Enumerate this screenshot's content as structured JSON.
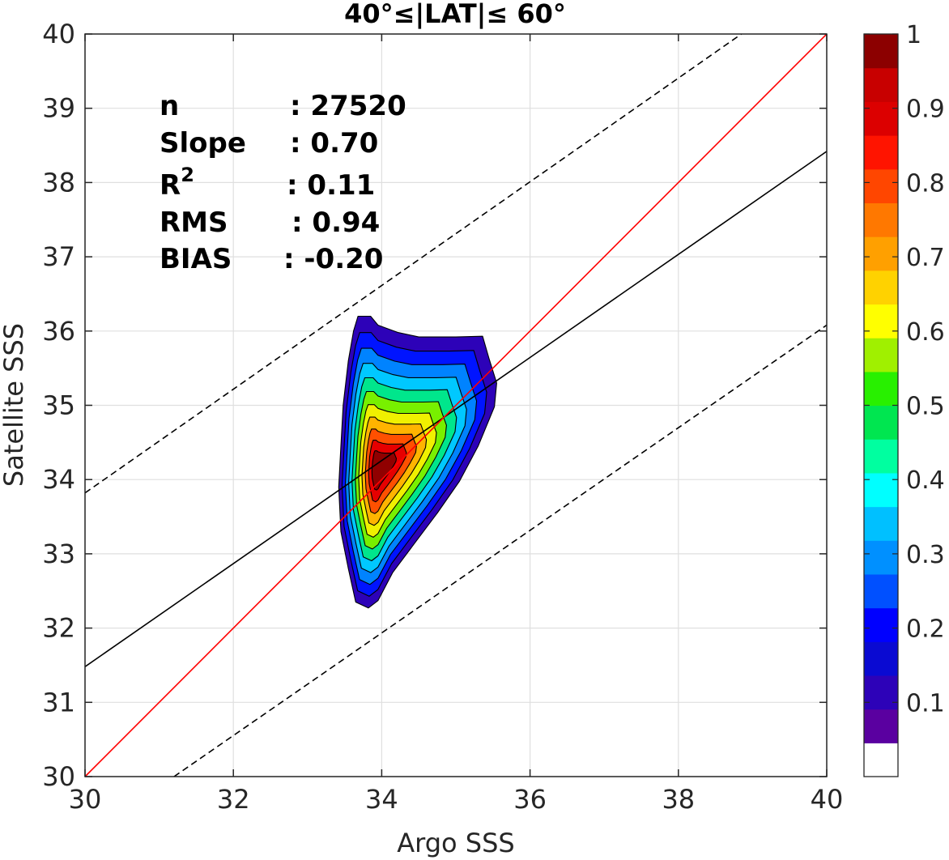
{
  "chart_data": {
    "type": "contour",
    "title": "40°≤|LAT|≤ 60°",
    "xlabel": "Argo SSS",
    "ylabel": "Satellite SSS",
    "xlim": [
      30,
      40
    ],
    "ylim": [
      30,
      40
    ],
    "xticks": [
      30,
      32,
      34,
      36,
      38,
      40
    ],
    "yticks": [
      30,
      31,
      32,
      33,
      34,
      35,
      36,
      37,
      38,
      39,
      40
    ],
    "grid": true,
    "stats": [
      {
        "key": "n",
        "value": ": 27520"
      },
      {
        "key": "Slope",
        "value": ": 0.70"
      },
      {
        "key": "R",
        "sup": "2",
        "value": ": 0.11"
      },
      {
        "key": "RMS",
        "value": ": 0.94"
      },
      {
        "key": "BIAS",
        "value": ": -0.20"
      }
    ],
    "lines": {
      "one_to_one": {
        "color": "#ff0000",
        "points": [
          [
            30,
            30
          ],
          [
            40,
            40
          ]
        ]
      },
      "regression": {
        "color": "#000000",
        "slope": 0.7,
        "points": [
          [
            30,
            31.48
          ],
          [
            40,
            38.42
          ]
        ]
      },
      "upper_bound": {
        "color": "#000000",
        "dash": true,
        "points": [
          [
            30,
            33.82
          ],
          [
            38.85,
            40
          ]
        ]
      },
      "lower_bound": {
        "color": "#000000",
        "dash": true,
        "points": [
          [
            31.2,
            30
          ],
          [
            40,
            36.08
          ]
        ]
      }
    },
    "density_contours": {
      "peak": [
        33.95,
        34.15
      ],
      "levels": [
        {
          "level": 0.05,
          "color": "#2d02b8"
        },
        {
          "level": 0.15,
          "color": "#0014ff"
        },
        {
          "level": 0.25,
          "color": "#0083ff"
        },
        {
          "level": 0.35,
          "color": "#00c8ff"
        },
        {
          "level": 0.45,
          "color": "#00e68c"
        },
        {
          "level": 0.55,
          "color": "#78f000"
        },
        {
          "level": 0.65,
          "color": "#f0f000"
        },
        {
          "level": 0.72,
          "color": "#ffb400"
        },
        {
          "level": 0.8,
          "color": "#ff5000"
        },
        {
          "level": 0.88,
          "color": "#e60000"
        },
        {
          "level": 0.95,
          "color": "#900000"
        }
      ]
    },
    "colorbar": {
      "range": [
        0,
        1
      ],
      "ticks": [
        "0.1",
        "0.2",
        "0.3",
        "0.4",
        "0.5",
        "0.6",
        "0.7",
        "0.8",
        "0.9",
        "1"
      ],
      "tick_values": [
        0.1,
        0.2,
        0.3,
        0.4,
        0.5,
        0.6,
        0.7,
        0.8,
        0.9,
        1.0
      ],
      "colors": [
        "#ffffff",
        "#5a00a0",
        "#2d02b8",
        "#0a0ad2",
        "#0000ff",
        "#0050ff",
        "#0090ff",
        "#00c0ff",
        "#00ffff",
        "#00ffa0",
        "#00e650",
        "#28f000",
        "#a0f000",
        "#ffff00",
        "#ffd200",
        "#ffa000",
        "#ff7800",
        "#ff4600",
        "#ff1400",
        "#dc0000",
        "#c80000",
        "#8c0000"
      ]
    }
  }
}
